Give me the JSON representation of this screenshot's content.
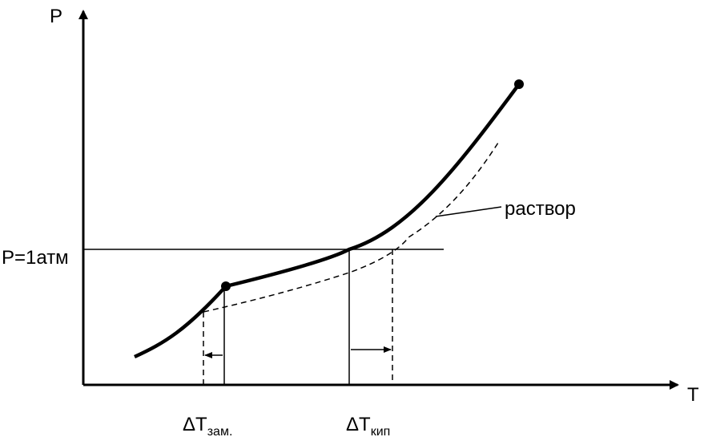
{
  "axes": {
    "y_label": "P",
    "x_label": "T"
  },
  "pressure_line_label": "P=1атм",
  "curve_label": "раствор",
  "delta_freeze": {
    "delta": "ΔT",
    "sub": "зам."
  },
  "delta_boil": {
    "delta": "ΔT",
    "sub": "кип"
  },
  "colors": {
    "ink": "#000000",
    "background": "#ffffff"
  }
}
